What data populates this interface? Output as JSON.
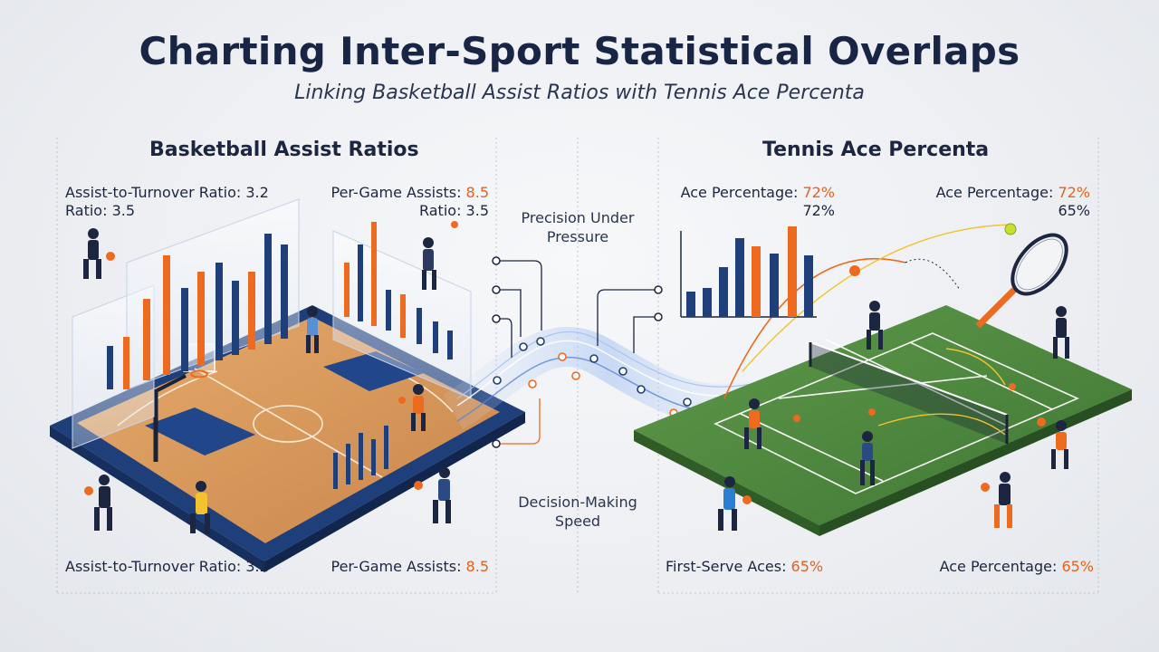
{
  "header": {
    "title": "Charting Inter-Sport Statistical Overlaps",
    "subtitle": "Linking Basketball Assist Ratios with Tennis Ace Percenta"
  },
  "basketball": {
    "heading": "Basketball Assist Ratios",
    "top_left": {
      "line1_label": "Assist-to-Turnover Ratio: ",
      "line1_value": "3.2",
      "line2_label": "Ratio: ",
      "line2_value": "3.5"
    },
    "top_right": {
      "line1_label": "Per-Game Assists: ",
      "line1_value": "8.5",
      "line2_label": "Ratio: ",
      "line2_value": "3.5"
    },
    "bottom_left": {
      "label": "Assist-to-Turnover Ratio: ",
      "value": "3.2"
    },
    "bottom_right": {
      "label": "Per-Game Assists: ",
      "value": "8.5"
    }
  },
  "connector": {
    "top_label": "Precision Under Pressure",
    "bottom_label": "Decision-Making Speed"
  },
  "tennis": {
    "heading": "Tennis Ace Percenta",
    "top_left": {
      "line1_label": "Ace Percentage: ",
      "line1_value": "72%",
      "line2_value": "72%"
    },
    "top_right": {
      "line1_label": "Ace Percentage: ",
      "line1_value": "72%",
      "line2_value": "65%"
    },
    "bottom_left": {
      "label": "First-Serve Aces: ",
      "value": "65%"
    },
    "bottom_right": {
      "label": "Ace Percentage: ",
      "value": "65%"
    }
  },
  "colors": {
    "navy": "#1f3f7a",
    "orange": "#ee6a1e",
    "court_wood": "#d99a5c",
    "court_green": "#4e8a3e",
    "flow_blue": "#7fa8e6"
  },
  "icons": [
    "basketball-player-icon",
    "tennis-player-icon",
    "tennis-racket-icon",
    "tennis-ball-icon",
    "basketball-hoop-icon"
  ]
}
